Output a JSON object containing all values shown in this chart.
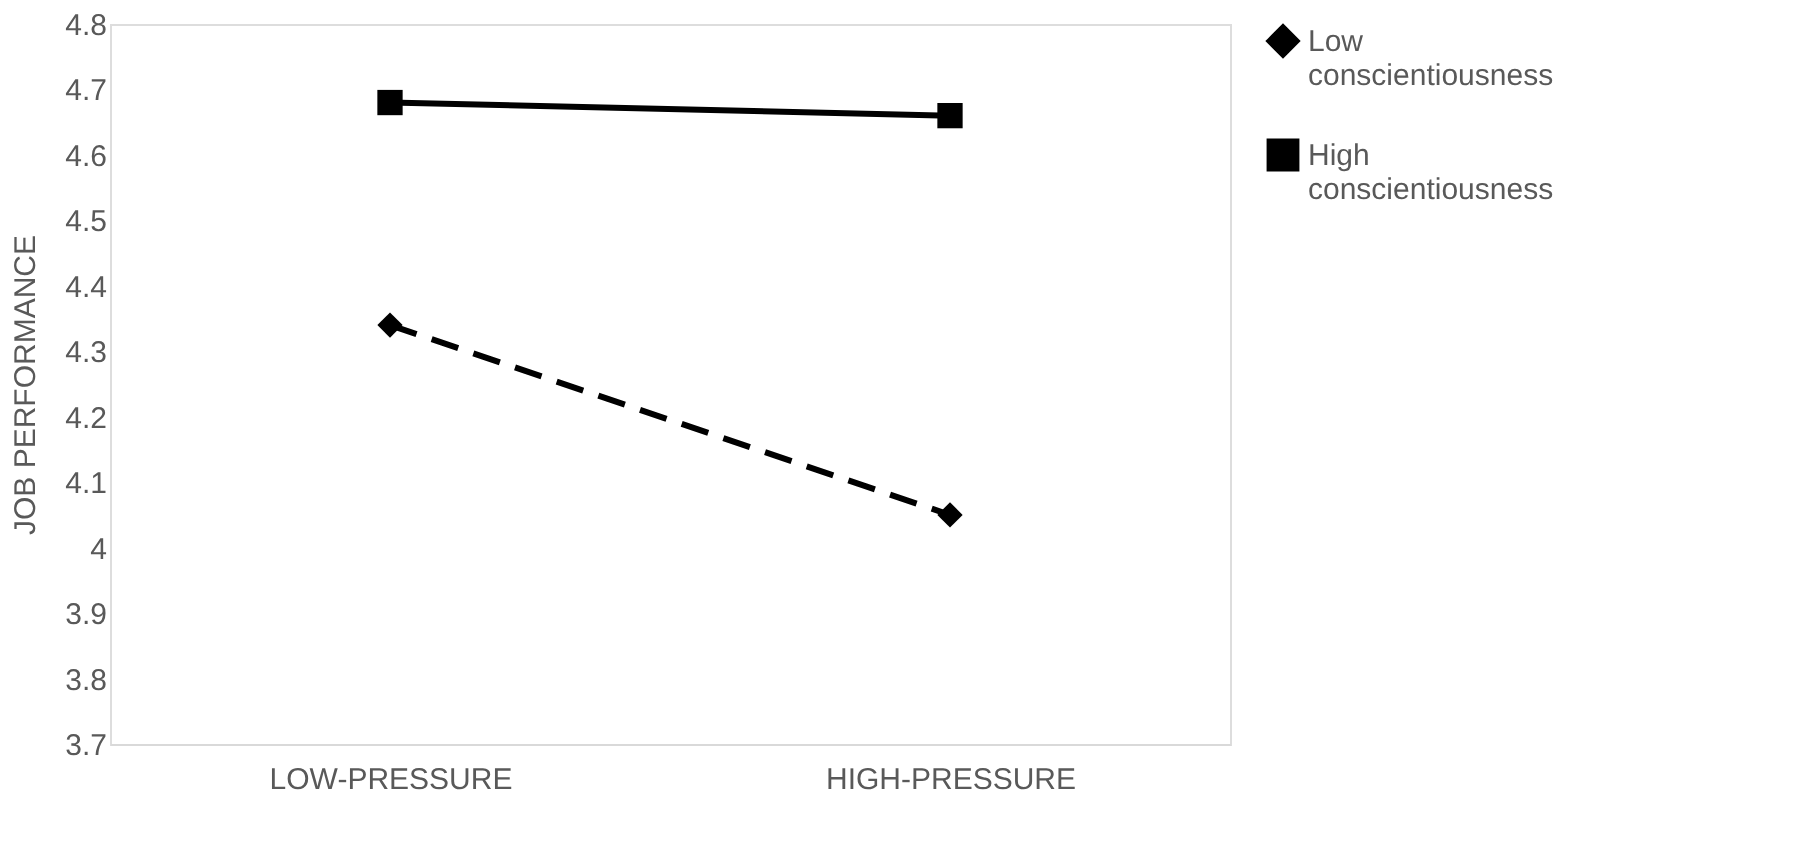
{
  "chart_data": {
    "type": "line",
    "ylabel": "JOB PERFORMANCE",
    "categories": [
      "LOW-PRESSURE",
      "HIGH-PRESSURE"
    ],
    "series": [
      {
        "name": "Low conscientiousness",
        "color": "#000000",
        "values": [
          4.34,
          4.05
        ],
        "line_style": "dashed",
        "marker": "diamond"
      },
      {
        "name": "High conscientiousness",
        "color": "#000000",
        "values": [
          4.68,
          4.66
        ],
        "line_style": "solid",
        "marker": "square"
      }
    ],
    "ylim": [
      3.7,
      4.8
    ],
    "yticks": [
      3.7,
      3.8,
      3.9,
      4,
      4.1,
      4.2,
      4.3,
      4.4,
      4.5,
      4.6,
      4.7,
      4.8
    ],
    "grid": false,
    "legend": "right"
  }
}
